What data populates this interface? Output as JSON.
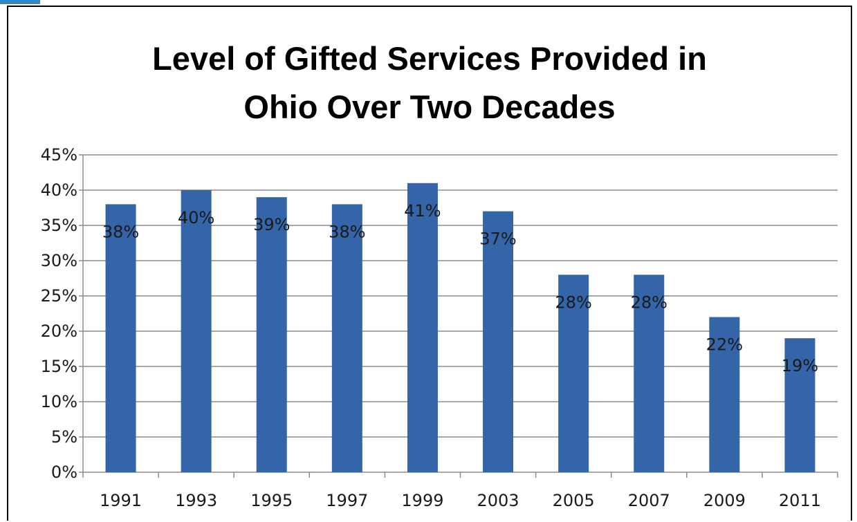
{
  "chart_data": {
    "type": "bar",
    "title_lines": [
      "Level of Gifted Services Provided in",
      "Ohio Over Two Decades"
    ],
    "categories": [
      "1991",
      "1993",
      "1995",
      "1997",
      "1999",
      "2003",
      "2005",
      "2007",
      "2009",
      "2011"
    ],
    "values": [
      38,
      40,
      39,
      38,
      41,
      37,
      28,
      28,
      22,
      19
    ],
    "data_labels": [
      "38%",
      "40%",
      "39%",
      "38%",
      "41%",
      "37%",
      "28%",
      "28%",
      "22%",
      "19%"
    ],
    "y_ticks": [
      0,
      5,
      10,
      15,
      20,
      25,
      30,
      35,
      40,
      45
    ],
    "y_tick_labels": [
      "0%",
      "5%",
      "10%",
      "15%",
      "20%",
      "25%",
      "30%",
      "35%",
      "40%",
      "45%"
    ],
    "ylim": [
      0,
      45
    ],
    "grid": true,
    "legend": "none",
    "colors": {
      "bar": "#3465a8",
      "grid": "#8c8c8c",
      "accent": "#2f86c8"
    }
  }
}
